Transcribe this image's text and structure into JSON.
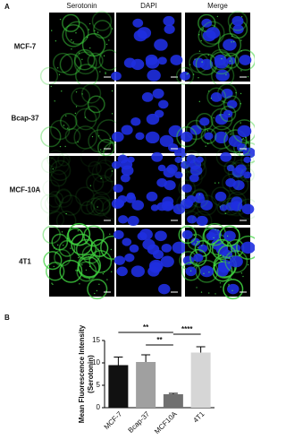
{
  "figure": {
    "panel_a": "A",
    "columns": [
      "Serotonin",
      "DAPI",
      "Merge"
    ],
    "rows": [
      "MCF-7",
      "Bcap-37",
      "MCF-10A",
      "4T1"
    ],
    "panel_b": "B"
  },
  "chart_data": {
    "type": "bar",
    "ylabel": [
      "Mean Fluorescence Intensity",
      "(Serotonin)"
    ],
    "categories": [
      "MCF-7",
      "Bcap-37",
      "MCF10A",
      "4T1"
    ],
    "values": [
      9.5,
      10.2,
      3.0,
      12.3
    ],
    "errors": [
      1.8,
      1.6,
      0.2,
      1.3
    ],
    "colors": [
      "#111111",
      "#a0a0a0",
      "#707070",
      "#d6d6d6"
    ],
    "ylim": [
      0,
      15
    ],
    "yticks": [
      0,
      5,
      10,
      15
    ],
    "significance": [
      "**",
      "**",
      "****"
    ]
  }
}
